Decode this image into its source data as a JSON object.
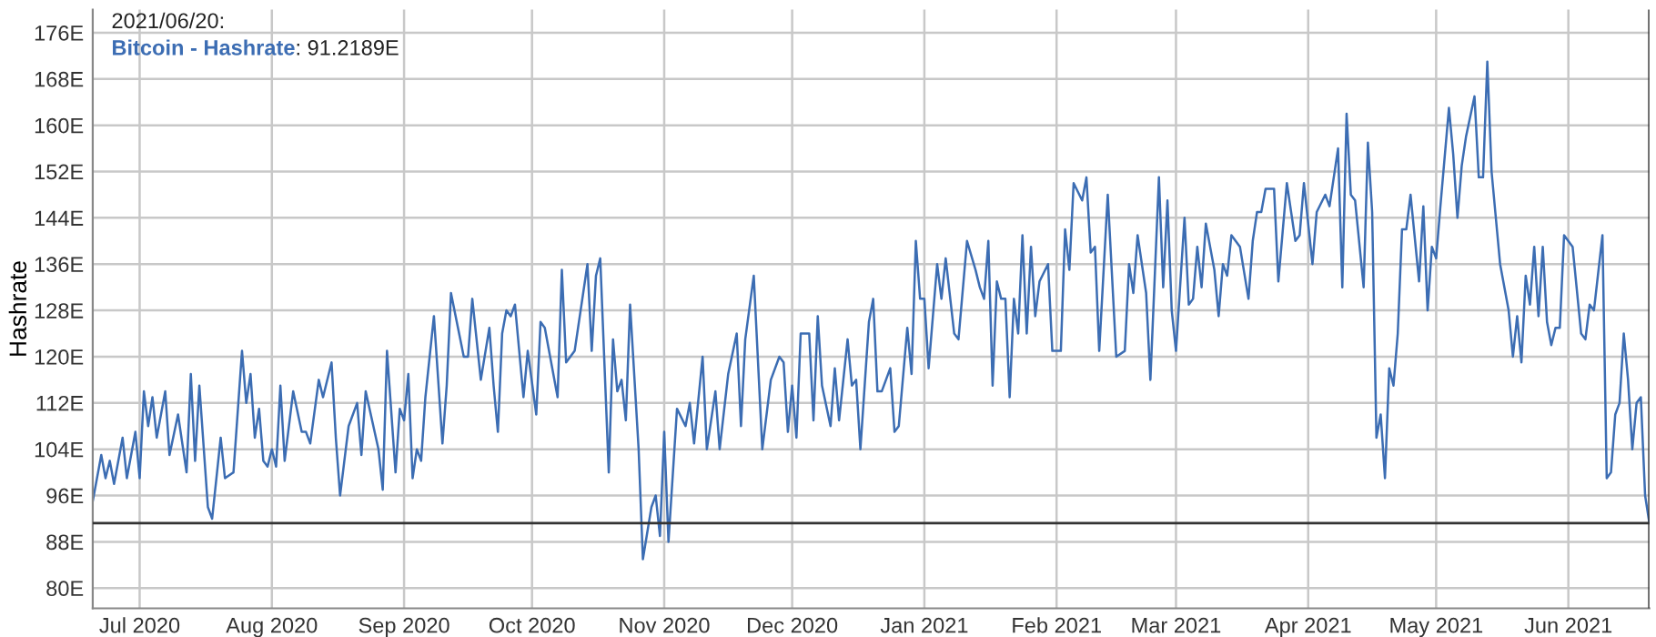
{
  "chart_data": {
    "type": "line",
    "ylabel": "Hashrate",
    "legend": "top left",
    "annotations": [
      "2021/06/20:",
      ": 91.2189E"
    ],
    "xlim": [
      "2020-06-20",
      "2021-06-20"
    ],
    "xticks": [
      {
        "value": "2020-07-01",
        "label": "Jul 2020"
      },
      {
        "value": "2020-08-01",
        "label": "Aug 2020"
      },
      {
        "value": "2020-09-01",
        "label": "Sep 2020"
      },
      {
        "value": "2020-10-01",
        "label": "Oct 2020"
      },
      {
        "value": "2020-11-01",
        "label": "Nov 2020"
      },
      {
        "value": "2020-12-01",
        "label": "Dec 2020"
      },
      {
        "value": "2021-01-01",
        "label": "Jan 2021"
      },
      {
        "value": "2021-02-01",
        "label": "Feb 2021"
      },
      {
        "value": "2021-03-01",
        "label": "Mar 2021"
      },
      {
        "value": "2021-04-01",
        "label": "Apr 2021"
      },
      {
        "value": "2021-05-01",
        "label": "May 2021"
      },
      {
        "value": "2021-06-01",
        "label": "Jun 2021"
      }
    ],
    "ylim": [
      76.5,
      180
    ],
    "yticks": [
      {
        "value": 80,
        "label": "80E"
      },
      {
        "value": 88,
        "label": "88E"
      },
      {
        "value": 96,
        "label": "96E"
      },
      {
        "value": 104,
        "label": "104E"
      },
      {
        "value": 112,
        "label": "112E"
      },
      {
        "value": 120,
        "label": "120E"
      },
      {
        "value": 128,
        "label": "128E"
      },
      {
        "value": 136,
        "label": "136E"
      },
      {
        "value": 144,
        "label": "144E"
      },
      {
        "value": 152,
        "label": "152E"
      },
      {
        "value": 160,
        "label": "160E"
      },
      {
        "value": 168,
        "label": "168E"
      },
      {
        "value": 176,
        "label": "176E"
      }
    ],
    "grid": true,
    "ref_lines": [
      {
        "axis": "y",
        "value": 91.2189,
        "label": null,
        "color": "#333333"
      },
      {
        "axis": "x",
        "value": "2021-06-20",
        "label": null,
        "color": "#333333"
      }
    ],
    "series": [
      {
        "name": "Bitcoin - Hashrate",
        "color": "#3c6db3",
        "x": [
          "2020-06-20",
          "2020-06-22",
          "2020-06-23",
          "2020-06-24",
          "2020-06-25",
          "2020-06-27",
          "2020-06-28",
          "2020-06-30",
          "2020-07-01",
          "2020-07-02",
          "2020-07-03",
          "2020-07-04",
          "2020-07-05",
          "2020-07-07",
          "2020-07-08",
          "2020-07-10",
          "2020-07-12",
          "2020-07-13",
          "2020-07-14",
          "2020-07-15",
          "2020-07-17",
          "2020-07-18",
          "2020-07-20",
          "2020-07-21",
          "2020-07-23",
          "2020-07-25",
          "2020-07-26",
          "2020-07-27",
          "2020-07-28",
          "2020-07-29",
          "2020-07-30",
          "2020-07-31",
          "2020-08-01",
          "2020-08-02",
          "2020-08-03",
          "2020-08-04",
          "2020-08-06",
          "2020-08-08",
          "2020-08-09",
          "2020-08-10",
          "2020-08-12",
          "2020-08-13",
          "2020-08-15",
          "2020-08-16",
          "2020-08-17",
          "2020-08-19",
          "2020-08-21",
          "2020-08-22",
          "2020-08-23",
          "2020-08-26",
          "2020-08-27",
          "2020-08-28",
          "2020-08-30",
          "2020-08-31",
          "2020-09-01",
          "2020-09-02",
          "2020-09-03",
          "2020-09-04",
          "2020-09-05",
          "2020-09-06",
          "2020-09-08",
          "2020-09-10",
          "2020-09-11",
          "2020-09-12",
          "2020-09-15",
          "2020-09-16",
          "2020-09-17",
          "2020-09-19",
          "2020-09-21",
          "2020-09-22",
          "2020-09-23",
          "2020-09-24",
          "2020-09-25",
          "2020-09-26",
          "2020-09-27",
          "2020-09-28",
          "2020-09-29",
          "2020-09-30",
          "2020-10-02",
          "2020-10-03",
          "2020-10-04",
          "2020-10-07",
          "2020-10-08",
          "2020-10-09",
          "2020-10-11",
          "2020-10-14",
          "2020-10-15",
          "2020-10-16",
          "2020-10-17",
          "2020-10-19",
          "2020-10-20",
          "2020-10-21",
          "2020-10-22",
          "2020-10-23",
          "2020-10-24",
          "2020-10-26",
          "2020-10-27",
          "2020-10-29",
          "2020-10-30",
          "2020-10-31",
          "2020-11-01",
          "2020-11-02",
          "2020-11-04",
          "2020-11-06",
          "2020-11-07",
          "2020-11-08",
          "2020-11-10",
          "2020-11-11",
          "2020-11-13",
          "2020-11-14",
          "2020-11-16",
          "2020-11-18",
          "2020-11-19",
          "2020-11-20",
          "2020-11-22",
          "2020-11-24",
          "2020-11-26",
          "2020-11-28",
          "2020-11-29",
          "2020-11-30",
          "2020-12-01",
          "2020-12-02",
          "2020-12-03",
          "2020-12-05",
          "2020-12-06",
          "2020-12-07",
          "2020-12-08",
          "2020-12-10",
          "2020-12-11",
          "2020-12-12",
          "2020-12-14",
          "2020-12-15",
          "2020-12-16",
          "2020-12-17",
          "2020-12-19",
          "2020-12-20",
          "2020-12-21",
          "2020-12-22",
          "2020-12-24",
          "2020-12-25",
          "2020-12-26",
          "2020-12-28",
          "2020-12-29",
          "2020-12-30",
          "2020-12-31",
          "2021-01-01",
          "2021-01-02",
          "2021-01-04",
          "2021-01-05",
          "2021-01-06",
          "2021-01-08",
          "2021-01-09",
          "2021-01-11",
          "2021-01-13",
          "2021-01-14",
          "2021-01-15",
          "2021-01-16",
          "2021-01-17",
          "2021-01-18",
          "2021-01-19",
          "2021-01-20",
          "2021-01-21",
          "2021-01-22",
          "2021-01-23",
          "2021-01-24",
          "2021-01-25",
          "2021-01-26",
          "2021-01-27",
          "2021-01-28",
          "2021-01-30",
          "2021-01-31",
          "2021-02-02",
          "2021-02-03",
          "2021-02-04",
          "2021-02-05",
          "2021-02-07",
          "2021-02-08",
          "2021-02-09",
          "2021-02-10",
          "2021-02-11",
          "2021-02-13",
          "2021-02-15",
          "2021-02-17",
          "2021-02-18",
          "2021-02-19",
          "2021-02-20",
          "2021-02-22",
          "2021-02-23",
          "2021-02-25",
          "2021-02-26",
          "2021-02-27",
          "2021-02-28",
          "2021-03-01",
          "2021-03-03",
          "2021-03-04",
          "2021-03-05",
          "2021-03-06",
          "2021-03-07",
          "2021-03-08",
          "2021-03-10",
          "2021-03-11",
          "2021-03-12",
          "2021-03-13",
          "2021-03-14",
          "2021-03-16",
          "2021-03-18",
          "2021-03-19",
          "2021-03-20",
          "2021-03-21",
          "2021-03-22",
          "2021-03-24",
          "2021-03-25",
          "2021-03-27",
          "2021-03-29",
          "2021-03-30",
          "2021-03-31",
          "2021-04-02",
          "2021-04-03",
          "2021-04-05",
          "2021-04-06",
          "2021-04-08",
          "2021-04-09",
          "2021-04-10",
          "2021-04-11",
          "2021-04-12",
          "2021-04-14",
          "2021-04-15",
          "2021-04-16",
          "2021-04-17",
          "2021-04-18",
          "2021-04-19",
          "2021-04-20",
          "2021-04-21",
          "2021-04-22",
          "2021-04-23",
          "2021-04-24",
          "2021-04-25",
          "2021-04-27",
          "2021-04-28",
          "2021-04-29",
          "2021-04-30",
          "2021-05-01",
          "2021-05-02",
          "2021-05-04",
          "2021-05-05",
          "2021-05-06",
          "2021-05-07",
          "2021-05-08",
          "2021-05-10",
          "2021-05-11",
          "2021-05-12",
          "2021-05-13",
          "2021-05-14",
          "2021-05-16",
          "2021-05-18",
          "2021-05-19",
          "2021-05-20",
          "2021-05-21",
          "2021-05-22",
          "2021-05-23",
          "2021-05-24",
          "2021-05-25",
          "2021-05-26",
          "2021-05-27",
          "2021-05-28",
          "2021-05-29",
          "2021-05-30",
          "2021-05-31",
          "2021-06-02",
          "2021-06-04",
          "2021-06-05",
          "2021-06-06",
          "2021-06-07",
          "2021-06-09",
          "2021-06-10",
          "2021-06-11",
          "2021-06-12",
          "2021-06-13",
          "2021-06-14",
          "2021-06-15",
          "2021-06-16",
          "2021-06-17",
          "2021-06-18",
          "2021-06-19",
          "2021-06-20"
        ],
        "values": [
          95,
          103,
          99,
          102,
          98,
          106,
          99,
          107,
          99,
          114,
          108,
          113,
          106,
          114,
          103,
          110,
          100,
          117,
          102,
          115,
          94,
          92,
          106,
          99,
          100,
          121,
          112,
          117,
          106,
          111,
          102,
          101,
          104,
          101,
          115,
          102,
          114,
          107,
          107,
          105,
          116,
          113,
          119,
          106,
          96,
          108,
          112,
          103,
          114,
          104,
          97,
          121,
          100,
          111,
          109,
          117,
          99,
          104,
          102,
          113,
          127,
          105,
          115,
          131,
          120,
          120,
          130,
          116,
          125,
          115,
          107,
          124,
          128,
          127,
          129,
          121,
          113,
          121,
          110,
          126,
          125,
          113,
          135,
          119,
          121,
          136,
          121,
          134,
          137,
          100,
          123,
          114,
          116,
          109,
          129,
          104,
          85,
          94,
          96,
          89,
          107,
          88,
          111,
          108,
          112,
          105,
          120,
          104,
          114,
          104,
          117,
          124,
          108,
          123,
          134,
          104,
          116,
          120,
          119,
          107,
          115,
          106,
          124,
          124,
          109,
          127,
          115,
          108,
          118,
          109,
          123,
          115,
          116,
          104,
          126,
          130,
          114,
          114,
          118,
          107,
          108,
          125,
          117,
          140,
          130,
          130,
          118,
          136,
          130,
          137,
          124,
          123,
          140,
          135,
          132,
          130,
          140,
          115,
          133,
          130,
          130,
          113,
          130,
          124,
          141,
          124,
          139,
          127,
          133,
          136,
          121,
          121,
          142,
          135,
          150,
          147,
          151,
          138,
          139,
          121,
          148,
          120,
          121,
          136,
          131,
          141,
          131,
          116,
          151,
          132,
          147,
          128,
          121,
          144,
          129,
          130,
          139,
          132,
          143,
          135,
          127,
          136,
          134,
          141,
          139,
          130,
          140,
          145,
          145,
          149,
          149,
          133,
          150,
          140,
          141,
          150,
          136,
          145,
          148,
          146,
          156,
          132,
          162,
          148,
          147,
          132,
          157,
          145,
          106,
          110,
          99,
          118,
          115,
          124,
          142,
          142,
          148,
          133,
          146,
          128,
          139,
          137,
          146,
          163,
          155,
          144,
          153,
          158,
          165,
          151,
          151,
          171,
          152,
          136,
          128,
          120,
          127,
          119,
          134,
          129,
          139,
          127,
          139,
          126,
          122,
          125,
          125,
          141,
          139,
          124,
          123,
          129,
          128,
          141,
          99,
          100,
          110,
          112,
          124,
          116,
          104,
          112,
          113,
          96,
          91.2189
        ]
      }
    ]
  }
}
